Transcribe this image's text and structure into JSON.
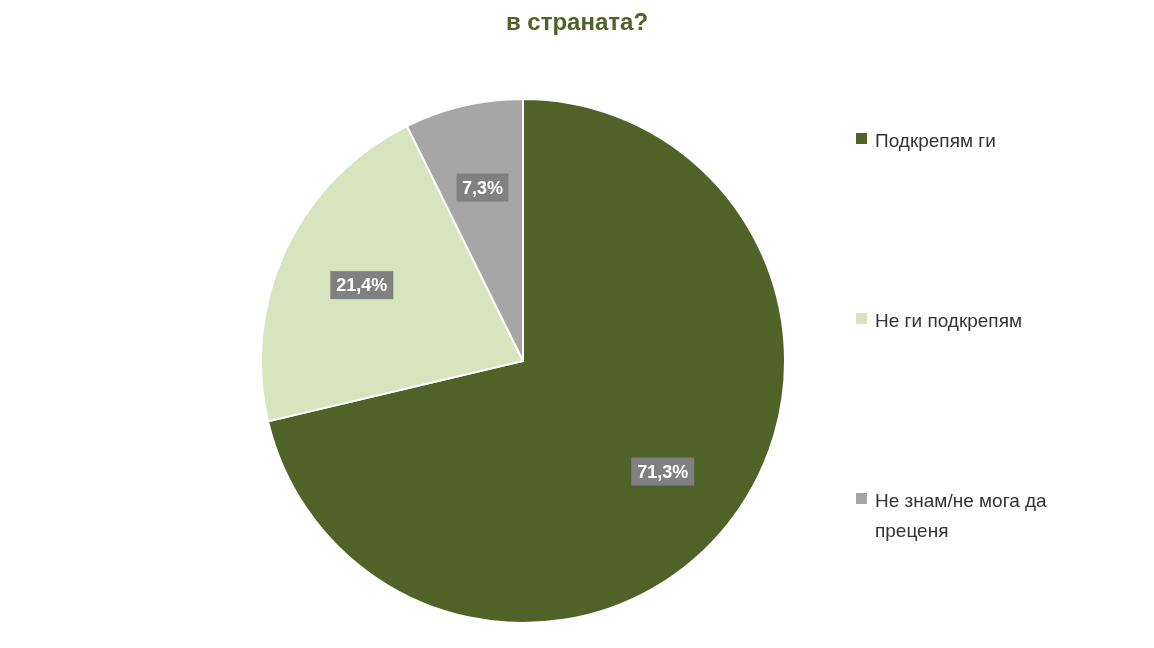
{
  "chart_data": {
    "type": "pie",
    "title": "в страната?",
    "categories": [
      "Подкрепям ги",
      "Не ги подкрепям",
      "Не знам/не мога да преценя"
    ],
    "values": [
      71.3,
      21.4,
      7.3
    ],
    "colors": [
      "#4f6228",
      "#d7e4bd",
      "#a6a6a6"
    ],
    "value_labels": [
      "71,3%",
      "21,4%",
      "7,3%"
    ],
    "legend": "right"
  }
}
